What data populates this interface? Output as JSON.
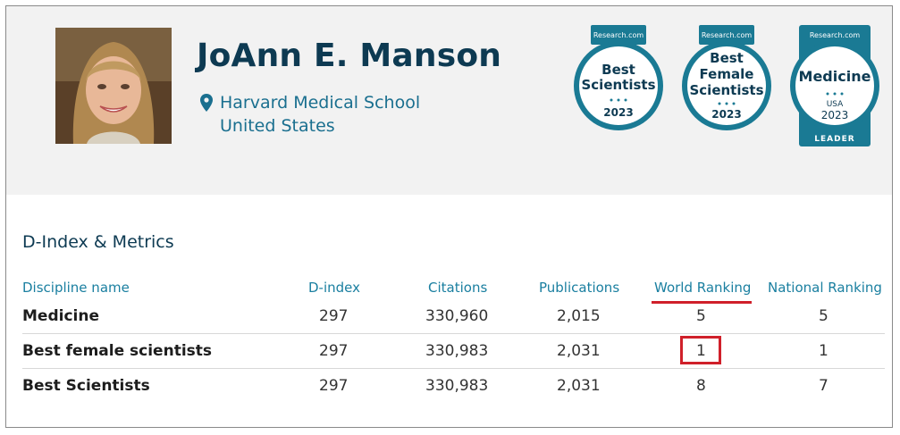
{
  "profile": {
    "name": "JoAnn E. Manson",
    "institution": "Harvard Medical School",
    "country": "United States",
    "photo_alt": "portrait-photo"
  },
  "badges": [
    {
      "brand": "Research.com",
      "line1": "Best",
      "line2": "Scientists",
      "line3": "",
      "year": "2023",
      "footer": "",
      "icon": "award-badge"
    },
    {
      "brand": "Research.com",
      "line1": "Best",
      "line2": "Female",
      "line3": "Scientists",
      "year": "2023",
      "footer": "",
      "icon": "award-badge"
    },
    {
      "brand": "Research.com",
      "line1": "Medicine",
      "line2": "USA",
      "line3": "",
      "year": "2023",
      "footer": "LEADER",
      "icon": "award-badge"
    }
  ],
  "metrics": {
    "title": "D-Index & Metrics",
    "columns": [
      "Discipline name",
      "D-index",
      "Citations",
      "Publications",
      "World Ranking",
      "National Ranking"
    ],
    "rows": [
      {
        "discipline": "Medicine",
        "d_index": "297",
        "citations": "330,960",
        "publications": "2,015",
        "world_ranking": "5",
        "national_ranking": "5"
      },
      {
        "discipline": "Best female scientists",
        "d_index": "297",
        "citations": "330,983",
        "publications": "2,031",
        "world_ranking": "1",
        "national_ranking": "1"
      },
      {
        "discipline": "Best Scientists",
        "d_index": "297",
        "citations": "330,983",
        "publications": "2,031",
        "world_ranking": "8",
        "national_ranking": "7"
      }
    ]
  },
  "colors": {
    "brand_teal": "#1a7a94",
    "heading_navy": "#0d3a52",
    "link_teal": "#1a6f8f",
    "highlight_red": "#d0202a",
    "header_bg": "#f2f2f2"
  }
}
